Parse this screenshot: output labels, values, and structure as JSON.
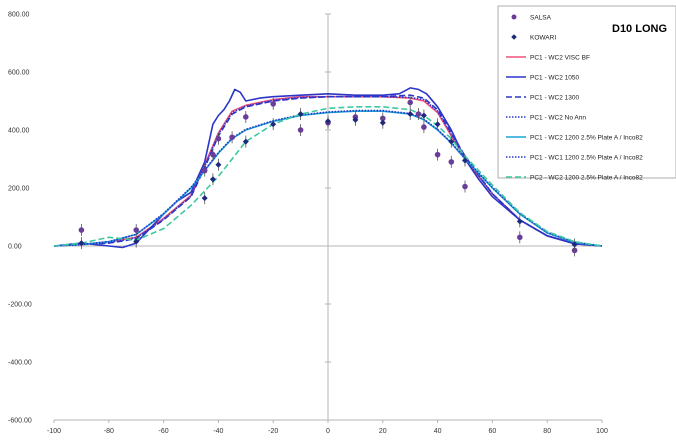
{
  "chart_data": {
    "type": "scatter",
    "title": "D10 LONG",
    "xlabel": "",
    "ylabel": "",
    "xlim": [
      -100,
      100
    ],
    "ylim": [
      -600,
      800
    ],
    "x_ticks": [
      -100,
      -80,
      -60,
      -40,
      -20,
      0,
      20,
      40,
      60,
      80,
      100
    ],
    "y_ticks": [
      800,
      600,
      400,
      200,
      0,
      -200,
      -400,
      -600
    ],
    "y_tick_labels": [
      "800.00",
      "600.00",
      "400.00",
      "200.00",
      "0.00",
      "-200.00",
      "-400.00",
      "-600.00"
    ],
    "grid": false,
    "zero_lines": true,
    "legend_position": "top-right",
    "series": [
      {
        "name": "SALSA",
        "kind": "marker",
        "marker": "circle",
        "color": "#6a3d9a",
        "x": [
          -90,
          -70,
          -45,
          -42,
          -40,
          -35,
          -30,
          -20,
          -10,
          0,
          10,
          20,
          30,
          33,
          35,
          40,
          45,
          50,
          70,
          90
        ],
        "y": [
          55,
          55,
          260,
          315,
          370,
          375,
          445,
          490,
          400,
          425,
          445,
          440,
          495,
          455,
          410,
          315,
          290,
          205,
          30,
          -15
        ]
      },
      {
        "name": "KOWARI",
        "kind": "marker",
        "marker": "diamond",
        "color": "#1f2a7a",
        "x": [
          -90,
          -70,
          -45,
          -42,
          -40,
          -30,
          -20,
          -10,
          0,
          10,
          20,
          30,
          35,
          40,
          45,
          50,
          70,
          90
        ],
        "y": [
          10,
          15,
          165,
          230,
          280,
          360,
          420,
          455,
          430,
          435,
          425,
          455,
          450,
          420,
          360,
          295,
          85,
          5
        ]
      },
      {
        "name": "PC1 - WC2  VISC BF",
        "kind": "line",
        "style": "solid",
        "color": "#f0507a",
        "x": [
          -100,
          -90,
          -80,
          -70,
          -60,
          -50,
          -45,
          -40,
          -35,
          -30,
          -20,
          -10,
          0,
          10,
          20,
          30,
          35,
          40,
          45,
          50,
          60,
          70,
          80,
          90,
          100
        ],
        "y": [
          0,
          5,
          15,
          30,
          95,
          175,
          280,
          390,
          465,
          485,
          505,
          515,
          515,
          515,
          515,
          510,
          500,
          460,
          380,
          300,
          180,
          90,
          35,
          8,
          0
        ]
      },
      {
        "name": "PC1 - WC2 1050",
        "kind": "line",
        "style": "solid",
        "color": "#2b35c8",
        "x": [
          -100,
          -90,
          -80,
          -75,
          -70,
          -65,
          -60,
          -55,
          -50,
          -45,
          -42,
          -40,
          -38,
          -36,
          -34,
          -32,
          -30,
          -25,
          -20,
          -10,
          0,
          10,
          20,
          26,
          28,
          30,
          33,
          36,
          40,
          45,
          50,
          55,
          60,
          70,
          80,
          90,
          100
        ],
        "y": [
          0,
          10,
          0,
          -5,
          10,
          60,
          110,
          155,
          185,
          290,
          420,
          450,
          470,
          500,
          540,
          530,
          500,
          510,
          515,
          520,
          525,
          520,
          520,
          525,
          535,
          545,
          540,
          525,
          480,
          400,
          300,
          230,
          170,
          90,
          35,
          8,
          0
        ]
      },
      {
        "name": "PC1 - WC2 1300",
        "kind": "line",
        "style": "dashed",
        "color": "#2b35c8",
        "x": [
          -100,
          -90,
          -80,
          -70,
          -60,
          -50,
          -45,
          -40,
          -35,
          -30,
          -20,
          -10,
          0,
          10,
          20,
          30,
          35,
          40,
          45,
          50,
          60,
          70,
          80,
          90,
          100
        ],
        "y": [
          0,
          5,
          10,
          25,
          90,
          170,
          270,
          380,
          455,
          480,
          500,
          510,
          515,
          515,
          515,
          520,
          510,
          470,
          390,
          310,
          180,
          90,
          35,
          8,
          0
        ]
      },
      {
        "name": "PC1 - WC2 No Ann",
        "kind": "line",
        "style": "dotted",
        "color": "#2b35c8",
        "x": [
          -100,
          -90,
          -80,
          -70,
          -60,
          -50,
          -45,
          -40,
          -35,
          -30,
          -20,
          -10,
          0,
          10,
          20,
          30,
          35,
          40,
          45,
          50,
          60,
          70,
          80,
          90,
          100
        ],
        "y": [
          0,
          5,
          12,
          28,
          92,
          172,
          275,
          385,
          460,
          482,
          502,
          512,
          515,
          515,
          515,
          512,
          505,
          465,
          385,
          305,
          180,
          90,
          35,
          8,
          0
        ]
      },
      {
        "name": "PC1 - WC2 1200 2.5% Plate A  / Inco82",
        "kind": "line",
        "style": "solid",
        "color": "#1aa3d6",
        "x": [
          -100,
          -90,
          -80,
          -70,
          -60,
          -50,
          -45,
          -40,
          -35,
          -30,
          -20,
          -10,
          0,
          10,
          20,
          30,
          35,
          40,
          45,
          50,
          60,
          70,
          80,
          90,
          100
        ],
        "y": [
          0,
          5,
          15,
          40,
          110,
          200,
          260,
          320,
          370,
          400,
          430,
          450,
          460,
          465,
          465,
          455,
          435,
          400,
          355,
          300,
          200,
          110,
          45,
          12,
          0
        ]
      },
      {
        "name": "PC1 - WC1 1200 2.5% Plate A  / Inco82",
        "kind": "line",
        "style": "dotted",
        "color": "#2b35c8",
        "x": [
          -100,
          -90,
          -80,
          -70,
          -60,
          -50,
          -45,
          -40,
          -35,
          -30,
          -20,
          -10,
          0,
          10,
          20,
          30,
          35,
          40,
          45,
          50,
          60,
          70,
          80,
          90,
          100
        ],
        "y": [
          0,
          5,
          15,
          40,
          112,
          202,
          262,
          322,
          372,
          402,
          432,
          452,
          462,
          467,
          467,
          457,
          437,
          402,
          357,
          302,
          202,
          112,
          47,
          13,
          0
        ]
      },
      {
        "name": "PC2 - WC2 1200 2.5% Plate A  / Inco82",
        "kind": "line",
        "style": "dashed",
        "color": "#3cc8a0",
        "x": [
          -100,
          -90,
          -80,
          -70,
          -60,
          -50,
          -45,
          -40,
          -35,
          -30,
          -20,
          -10,
          0,
          10,
          20,
          30,
          35,
          40,
          45,
          50,
          60,
          70,
          80,
          90,
          100
        ],
        "y": [
          0,
          10,
          30,
          20,
          60,
          140,
          190,
          240,
          300,
          360,
          420,
          455,
          475,
          480,
          480,
          470,
          450,
          415,
          370,
          310,
          210,
          115,
          50,
          15,
          0
        ]
      }
    ]
  }
}
